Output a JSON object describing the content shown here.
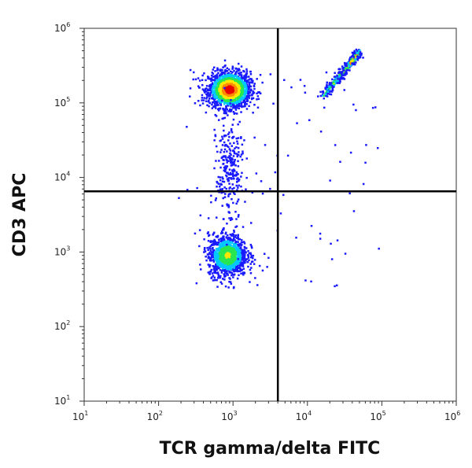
{
  "chart_data": {
    "type": "scatter",
    "title": "",
    "xlabel": "TCR gamma/delta FITC",
    "ylabel": "CD3 APC",
    "x_scale": "log",
    "y_scale": "log",
    "xlim": [
      10,
      1000000
    ],
    "ylim": [
      10,
      1000000
    ],
    "x_ticks": [
      {
        "base": "10",
        "exp": "1"
      },
      {
        "base": "10",
        "exp": "2"
      },
      {
        "base": "10",
        "exp": "3"
      },
      {
        "base": "10",
        "exp": "4"
      },
      {
        "base": "10",
        "exp": "5"
      },
      {
        "base": "10",
        "exp": "6"
      }
    ],
    "y_ticks": [
      {
        "base": "10",
        "exp": "1"
      },
      {
        "base": "10",
        "exp": "2"
      },
      {
        "base": "10",
        "exp": "3"
      },
      {
        "base": "10",
        "exp": "4"
      },
      {
        "base": "10",
        "exp": "5"
      },
      {
        "base": "10",
        "exp": "6"
      }
    ],
    "quadrant_gates": {
      "x": 4000,
      "y": 6500
    },
    "grid": false,
    "legend": "none",
    "density_colormap": [
      "#1a1aff",
      "#00c8ff",
      "#28e650",
      "#ffe600",
      "#ff8c00",
      "#e60000"
    ],
    "populations": [
      {
        "id": "cd3-positive-tcr-gd-negative",
        "center": [
          900,
          150000
        ],
        "spread_log": [
          0.14,
          0.12
        ],
        "count": 1700
      },
      {
        "id": "cd3-negative-tcr-gd-negative",
        "center": [
          850,
          900
        ],
        "spread_log": [
          0.13,
          0.14
        ],
        "count": 1100
      },
      {
        "id": "cd3-positive-tcr-gd-positive",
        "center_start": [
          16000,
          120000
        ],
        "center_end": [
          50000,
          480000
        ],
        "count": 420
      },
      {
        "id": "bridge-events",
        "center": [
          900,
          12000
        ],
        "spread_log": [
          0.09,
          0.35
        ],
        "count": 260
      }
    ]
  }
}
